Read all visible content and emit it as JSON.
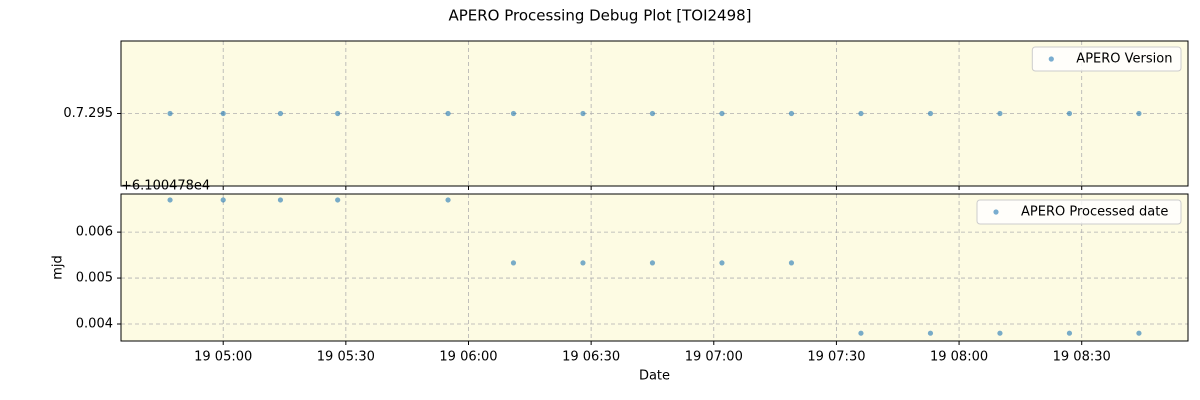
{
  "chart_data": [
    {
      "type": "scatter",
      "title": "APERO Processing Debug Plot [TOI2498]",
      "x": [
        "19 04:47",
        "19 05:00",
        "19 05:14",
        "19 05:28",
        "19 05:55",
        "19 06:11",
        "19 06:28",
        "19 06:45",
        "19 07:02",
        "19 07:19",
        "19 07:36",
        "19 07:53",
        "19 08:10",
        "19 08:27",
        "19 08:44"
      ],
      "series": [
        {
          "name": "APERO Version",
          "color": "#1f77b4",
          "values": [
            0,
            0,
            0,
            0,
            0,
            0,
            0,
            0,
            0,
            0,
            0,
            0,
            0,
            0,
            0
          ]
        }
      ],
      "xlim": [
        "19 04:35",
        "19 08:56"
      ],
      "xticks": [
        "19 05:00",
        "19 05:30",
        "19 06:00",
        "19 06:30",
        "19 07:00",
        "19 07:30",
        "19 08:00",
        "19 08:30"
      ],
      "ylim": [
        -1,
        1
      ],
      "yticks": [
        {
          "value": 0,
          "label": "0.7.295"
        }
      ],
      "grid": true,
      "legend": "upper right",
      "background": "#fdfbe3"
    },
    {
      "type": "scatter",
      "x": [
        "19 04:47",
        "19 05:00",
        "19 05:14",
        "19 05:28",
        "19 05:55",
        "19 06:11",
        "19 06:28",
        "19 06:45",
        "19 07:02",
        "19 07:19",
        "19 07:36",
        "19 07:53",
        "19 08:10",
        "19 08:27",
        "19 08:44"
      ],
      "series": [
        {
          "name": "APERO Processed date",
          "color": "#1f77b4",
          "values": [
            0.0067,
            0.0067,
            0.0067,
            0.0067,
            0.0067,
            0.00533,
            0.00533,
            0.00533,
            0.00533,
            0.00533,
            0.0038,
            0.0038,
            0.0038,
            0.0038,
            0.0038
          ]
        }
      ],
      "xlim": [
        "19 04:35",
        "19 08:56"
      ],
      "xticks": [
        "19 05:00",
        "19 05:30",
        "19 06:00",
        "19 06:30",
        "19 07:00",
        "19 07:30",
        "19 08:00",
        "19 08:30"
      ],
      "ylim": [
        0.00363,
        0.00683
      ],
      "yticks": [
        0.004,
        0.005,
        0.006
      ],
      "offset_label": "+6.100478e4",
      "xlabel": "Date",
      "ylabel": "mjd",
      "grid": true,
      "legend": "upper right",
      "background": "#fdfbe3"
    }
  ]
}
